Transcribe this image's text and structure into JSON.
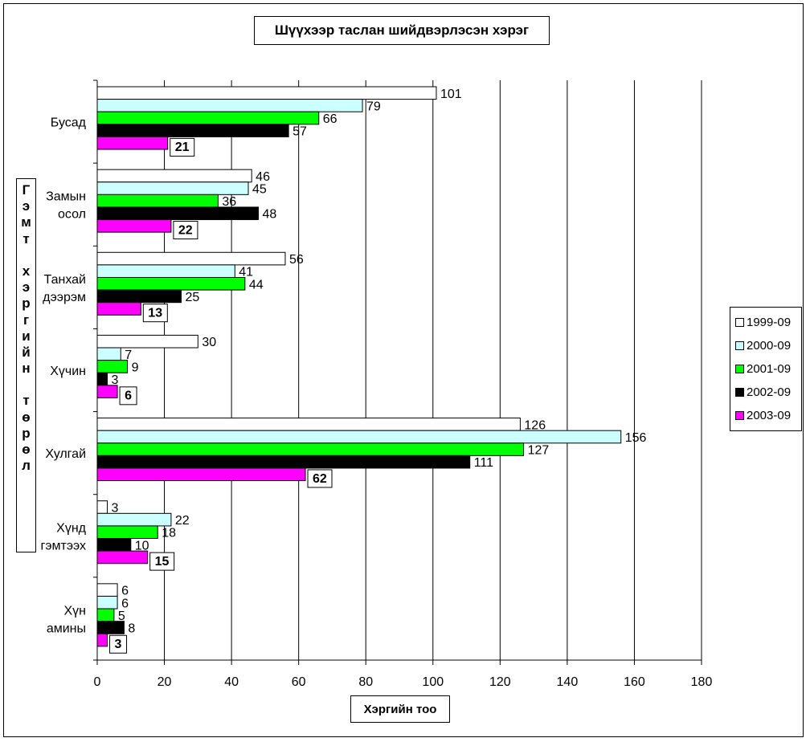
{
  "chart_data": {
    "type": "bar",
    "orientation": "horizontal",
    "title": "Шүүхээр таслан шийдвэрлэсэн хэрэг",
    "xlabel": "Хэргийн тоо",
    "ylabel": "Гэмт хэргийн төрөл",
    "xlim": [
      0,
      180
    ],
    "xticks": [
      0,
      20,
      40,
      60,
      80,
      100,
      120,
      140,
      160,
      180
    ],
    "grid": true,
    "legend_position": "right",
    "categories": [
      [
        "Бусад"
      ],
      [
        "Замын",
        "осол"
      ],
      [
        "Танхай",
        "дээрэм"
      ],
      [
        "Хүчин"
      ],
      [
        "Хулгай"
      ],
      [
        "Хүнд",
        "гэмтээх"
      ],
      [
        "Хүн",
        "амины"
      ]
    ],
    "series": [
      {
        "name": "1999-09",
        "color": "#ffffff",
        "values": [
          101,
          46,
          56,
          30,
          126,
          3,
          6
        ]
      },
      {
        "name": "2000-09",
        "color": "#ccffff",
        "values": [
          79,
          45,
          41,
          7,
          156,
          22,
          6
        ]
      },
      {
        "name": "2001-09",
        "color": "#00ff00",
        "values": [
          66,
          36,
          44,
          9,
          127,
          18,
          5
        ]
      },
      {
        "name": "2002-09",
        "color": "#000000",
        "values": [
          57,
          48,
          25,
          3,
          111,
          10,
          8
        ]
      },
      {
        "name": "2003-09",
        "color": "#ff00ff",
        "values": [
          21,
          22,
          13,
          6,
          62,
          15,
          3
        ]
      }
    ]
  }
}
